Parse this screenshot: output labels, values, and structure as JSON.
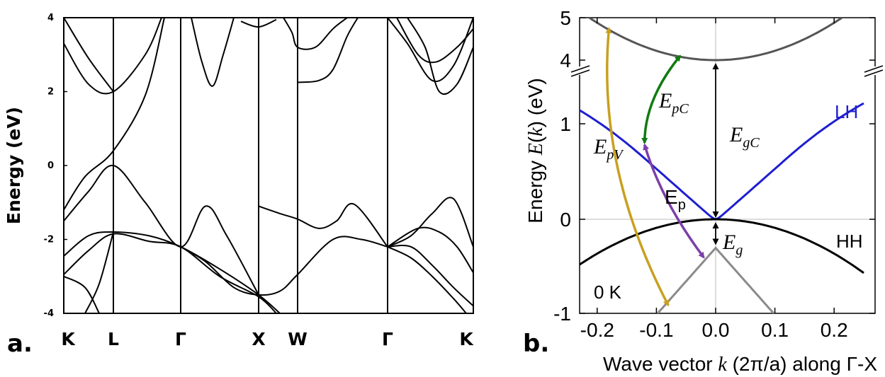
{
  "chart_data": [
    {
      "panel": "a",
      "type": "line",
      "panel_label": "a.",
      "ylabel": "Energy (eV)",
      "ylim": [
        -4,
        4
      ],
      "yticks": [
        "4",
        "2",
        "0",
        "-2",
        "-4"
      ],
      "high_symmetry_points": [
        "K",
        "L",
        "Γ",
        "X",
        "W",
        "Γ",
        "K"
      ],
      "line_color": "#000000",
      "band_energies_at_points": {
        "K": [
          -4.0,
          -3.0,
          -2.5,
          3.3,
          4.0
        ],
        "L": [
          -1.8,
          0.0,
          0.4,
          2.0,
          4.0
        ],
        "Γ": [
          -2.2,
          4.0
        ],
        "X": [
          -3.5,
          -1.1,
          4.0
        ],
        "W": [
          -2.9,
          -1.4,
          2.2,
          3.1
        ]
      }
    },
    {
      "panel": "b",
      "type": "line",
      "panel_label": "b.",
      "xlabel": "Wave vector k (2π/a) along Γ-X",
      "ylabel": "Energy E(k) (eV)",
      "xlim": [
        -0.25,
        0.25
      ],
      "xticks": [
        "-0.2",
        "-0.1",
        "0.0",
        "0.1",
        "0.2"
      ],
      "yticks": [
        "5",
        "4",
        "1",
        "0",
        "-1"
      ],
      "axis_break": "between 1 and 4",
      "temperature_label": "0 K",
      "series": [
        {
          "name": "",
          "color": "#555555",
          "band": "conduction (upper)",
          "x": [
            -0.2,
            -0.1,
            0.0,
            0.1,
            0.2
          ],
          "y": [
            4.9,
            4.2,
            4.0,
            4.2,
            4.9
          ]
        },
        {
          "name": "LH",
          "color": "#1f1fd0",
          "band": "light hole",
          "x": [
            -0.25,
            -0.15,
            -0.1,
            -0.05,
            0.0,
            0.05,
            0.1,
            0.15,
            0.25
          ],
          "y": [
            1.35,
            0.95,
            0.65,
            0.3,
            0.0,
            0.3,
            0.65,
            0.95,
            1.35
          ]
        },
        {
          "name": "HH",
          "color": "#000000",
          "band": "heavy hole",
          "x": [
            -0.25,
            -0.2,
            -0.1,
            0.0,
            0.1,
            0.2,
            0.25
          ],
          "y": [
            -0.55,
            -0.35,
            -0.1,
            0.0,
            -0.1,
            -0.35,
            -0.55
          ]
        },
        {
          "name": "",
          "color": "#8a8a8a",
          "band": "split-off",
          "x": [
            -0.05,
            0.0,
            0.05,
            0.1
          ],
          "y": [
            -0.85,
            -0.3,
            -0.55,
            -1.0
          ]
        }
      ],
      "annotations": [
        {
          "label": "E_pC",
          "main": "E",
          "sub": "pC",
          "color": "#117a11",
          "from": [
            -0.12,
            0.8
          ],
          "to": [
            -0.06,
            4.1
          ]
        },
        {
          "label": "E_pV",
          "main": "E",
          "sub": "pV",
          "color": "#c8a020",
          "from": [
            -0.18,
            4.75
          ],
          "to": [
            -0.08,
            -0.9
          ]
        },
        {
          "label": "E_p",
          "main": "E",
          "sub": "p",
          "color": "#7b3fa8",
          "from": [
            -0.12,
            0.78
          ],
          "to": [
            -0.02,
            -0.4
          ]
        },
        {
          "label": "E_gC",
          "main": "E",
          "sub": "gC",
          "color": "#000000",
          "from": [
            0.0,
            0.0
          ],
          "to": [
            0.0,
            4.0
          ]
        },
        {
          "label": "E_g",
          "main": "E",
          "sub": "g",
          "color": "#000000",
          "from": [
            0.0,
            0.0
          ],
          "to": [
            0.0,
            -0.3
          ]
        }
      ]
    }
  ]
}
